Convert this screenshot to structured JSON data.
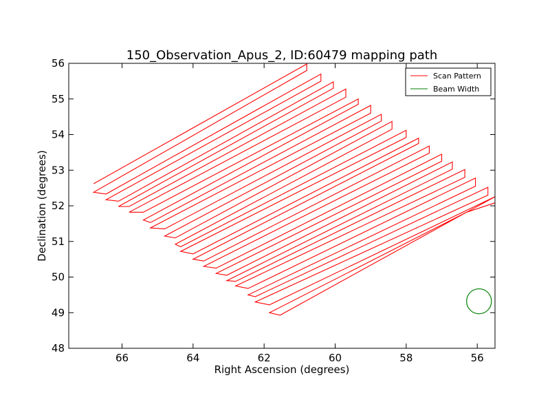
{
  "chart_data": {
    "type": "line",
    "title": "150_Observation_Apus_2, ID:60479 mapping path",
    "xlabel": "Right Ascension (degrees)",
    "ylabel": "Declination (degrees)",
    "xlim": [
      67.5,
      55.5
    ],
    "ylim": [
      48,
      56
    ],
    "x_ticks": [
      66,
      64,
      62,
      60,
      58,
      56
    ],
    "y_ticks": [
      48,
      49,
      50,
      51,
      52,
      53,
      54,
      55,
      56
    ],
    "grid": false,
    "legend_position": "top-right",
    "series": [
      {
        "name": "Scan Pattern",
        "color": "#ff0000",
        "ends_left": [
          [
            66.8,
            52.62
          ],
          [
            66.8,
            52.38
          ],
          [
            66.45,
            52.33
          ],
          [
            66.45,
            52.17
          ],
          [
            66.1,
            52.13
          ],
          [
            66.1,
            51.98
          ],
          [
            65.8,
            51.98
          ],
          [
            65.8,
            51.82
          ],
          [
            65.4,
            51.82
          ],
          [
            65.4,
            51.6
          ],
          [
            65.2,
            51.53
          ],
          [
            65.2,
            51.38
          ],
          [
            64.8,
            51.35
          ],
          [
            64.8,
            51.15
          ],
          [
            64.5,
            51.1
          ],
          [
            64.5,
            50.92
          ],
          [
            64.35,
            50.85
          ],
          [
            64.35,
            50.72
          ],
          [
            64.0,
            50.65
          ],
          [
            64.0,
            50.5
          ],
          [
            63.7,
            50.45
          ],
          [
            63.7,
            50.3
          ],
          [
            63.35,
            50.25
          ],
          [
            63.35,
            50.1
          ],
          [
            63.05,
            50.05
          ],
          [
            63.05,
            49.9
          ],
          [
            62.8,
            49.88
          ],
          [
            62.8,
            49.75
          ],
          [
            62.45,
            49.68
          ],
          [
            62.45,
            49.5
          ],
          [
            62.25,
            49.45
          ],
          [
            62.25,
            49.3
          ],
          [
            61.85,
            49.22
          ],
          [
            61.85,
            49.0
          ],
          [
            61.55,
            48.93
          ]
        ],
        "ends_right": [
          [
            60.8,
            55.98
          ],
          [
            60.8,
            55.8
          ],
          [
            60.4,
            55.7
          ],
          [
            60.4,
            55.5
          ],
          [
            60.05,
            55.48
          ],
          [
            60.05,
            55.3
          ],
          [
            59.7,
            55.28
          ],
          [
            59.7,
            55.05
          ],
          [
            59.35,
            55.0
          ],
          [
            59.35,
            54.85
          ],
          [
            59.0,
            54.82
          ],
          [
            59.0,
            54.6
          ],
          [
            58.7,
            54.57
          ],
          [
            58.7,
            54.38
          ],
          [
            58.4,
            54.37
          ],
          [
            58.4,
            54.15
          ],
          [
            58.0,
            54.12
          ],
          [
            58.0,
            53.92
          ],
          [
            57.65,
            53.9
          ],
          [
            57.65,
            53.75
          ],
          [
            57.35,
            53.68
          ],
          [
            57.35,
            53.48
          ],
          [
            57.0,
            53.45
          ],
          [
            57.0,
            53.25
          ],
          [
            56.7,
            53.23
          ],
          [
            56.7,
            53.03
          ],
          [
            56.35,
            53.02
          ],
          [
            56.35,
            52.8
          ],
          [
            56.05,
            52.78
          ],
          [
            56.05,
            52.55
          ],
          [
            55.7,
            52.52
          ],
          [
            55.7,
            52.3
          ],
          [
            55.45,
            52.28
          ],
          [
            56.3,
            51.82
          ],
          [
            56.3,
            51.82
          ]
        ]
      },
      {
        "name": "Beam Width",
        "color": "#008000",
        "center": [
          55.95,
          49.32
        ],
        "radius_deg": 0.35
      }
    ]
  }
}
